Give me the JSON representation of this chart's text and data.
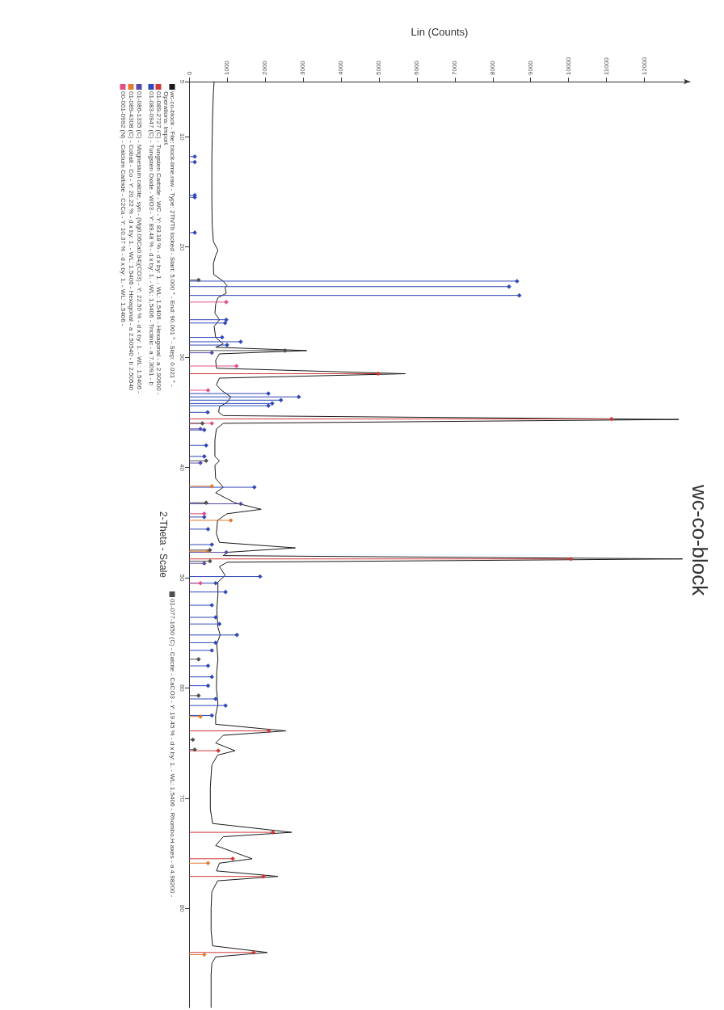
{
  "chart_data": {
    "type": "line",
    "orientation": "horizontal",
    "title": "wc-co-block",
    "xlabel": "Lin (Counts)",
    "ylabel": "2-Theta - Scale",
    "xlim": [
      0,
      13200
    ],
    "xticks": [
      0,
      1000,
      2000,
      3000,
      4000,
      5000,
      6000,
      7000,
      8000,
      9000,
      10000,
      11000,
      12000
    ],
    "ylim": [
      89,
      5
    ],
    "yticks": [
      5,
      10,
      20,
      30,
      40,
      50,
      60,
      70,
      80
    ],
    "grid": false,
    "legend": "left",
    "annotations": [
      "Operations: Import"
    ],
    "series": [
      {
        "type": "line",
        "marker": "none",
        "name": "wc-co-block - File: block-time.raw - Type: 2Th/Th locked - Start: 5.000 ° - End: 90.001 ° - Step: 0.021 ° -",
        "color": "#1a1a1a",
        "x": [
          5,
          6,
          8,
          10,
          12,
          14,
          16,
          18,
          19.5,
          20.3,
          20.8,
          21.5,
          22.5,
          23.1,
          23.5,
          23.7,
          24.2,
          24.6,
          25.2,
          26,
          26.6,
          27.2,
          28.2,
          28.8,
          29.1,
          29.4,
          29.7,
          30.3,
          31,
          31.5,
          31.9,
          32.5,
          33,
          33.6,
          34.1,
          34.5,
          35,
          35.3,
          35.65,
          36,
          36.5,
          37.5,
          39,
          39.4,
          39.8,
          41,
          41.8,
          42.3,
          43.2,
          43.8,
          44.2,
          44.8,
          46,
          46.8,
          47.3,
          47.7,
          48,
          48.3,
          48.6,
          49,
          49.8,
          50.4,
          51.5,
          53,
          54.5,
          55.2,
          56,
          57.4,
          58.5,
          60,
          61.5,
          62.5,
          63.3,
          63.9,
          64.3,
          65,
          65.7,
          66.1,
          67,
          69,
          71,
          72.3,
          73.1,
          73.5,
          74.3,
          75.5,
          75.9,
          76.6,
          77.1,
          77.5,
          78.5,
          80,
          82,
          83.4,
          84,
          84.4,
          85,
          86,
          87,
          88,
          89
        ],
        "values": [
          660,
          640,
          620,
          610,
          600,
          600,
          600,
          610,
          640,
          760,
          700,
          640,
          650,
          900,
          1000,
          950,
          980,
          760,
          700,
          680,
          800,
          660,
          700,
          900,
          700,
          3100,
          800,
          700,
          720,
          5700,
          800,
          720,
          850,
          1100,
          1000,
          800,
          780,
          900,
          12900,
          900,
          720,
          680,
          680,
          800,
          680,
          700,
          900,
          700,
          1200,
          1900,
          1000,
          750,
          720,
          800,
          2800,
          1000,
          900,
          13000,
          1000,
          800,
          950,
          760,
          760,
          730,
          760,
          820,
          730,
          760,
          730,
          720,
          760,
          700,
          700,
          2550,
          900,
          700,
          1210,
          750,
          600,
          560,
          560,
          620,
          2700,
          900,
          700,
          1660,
          800,
          720,
          2340,
          750,
          600,
          580,
          580,
          620,
          2060,
          700,
          600,
          580,
          580,
          580,
          580
        ]
      },
      {
        "type": "lollipop",
        "marker": "diamond",
        "name": "01-089-2727 (C) - Tungsten Carbide - WC - Y: 83.18 % - d x by: 1. - WL: 1.5406 - Hexagonal - a 2.90600 -",
        "color": "#d03838",
        "x": [
          31.5,
          35.6,
          48.3,
          63.9,
          65.7,
          73.1,
          75.5,
          77.1,
          84.0
        ],
        "values": [
          4980,
          11130,
          10060,
          2100,
          770,
          2210,
          1150,
          1960,
          1700
        ]
      },
      {
        "type": "lollipop",
        "marker": "diamond",
        "name": "01-083-0947 (C) - Tungsten Oxide - WO3 - Y: 89.48 % - d x by: 1. - WL: 1.5406 - Triclinic - a 7.3091 - b",
        "color": "#3048b8",
        "x": [
          11.8,
          12.3,
          15.3,
          15.5,
          18.7,
          23.1,
          23.6,
          24.4,
          26.6,
          26.9,
          28.2,
          28.6,
          28.9,
          33.3,
          33.6,
          33.9,
          34.2,
          34.4,
          35.0,
          36.6,
          38.0,
          39.0,
          41.8,
          44.5,
          45.6,
          47.0,
          49.9,
          50.5,
          51.3,
          52.5,
          53.6,
          54.2,
          55.2,
          55.9,
          56.6,
          58.0,
          59.0,
          59.8,
          61.0,
          61.6,
          62.5
        ],
        "values": [
          150,
          150,
          150,
          150,
          150,
          8640,
          8430,
          8700,
          980,
          950,
          870,
          1360,
          1000,
          2090,
          2890,
          2420,
          2190,
          2090,
          490,
          400,
          450,
          400,
          1720,
          400,
          500,
          600,
          1870,
          700,
          960,
          600,
          700,
          800,
          1260,
          700,
          600,
          500,
          600,
          500,
          700,
          960,
          600
        ]
      },
      {
        "type": "lollipop",
        "marker": "diamond",
        "name": "01-086-1335 (C) - Magnesium calcite, syn - (Mg0.06Ca0.94)(CO3) - Y: 22.50 % - d x by: 1. - WL: 1.5406 -",
        "color": "#5a4aa8",
        "x": [
          29.6,
          36.5,
          39.6,
          43.3,
          47.7,
          48.7
        ],
        "values": [
          600,
          300,
          300,
          1360,
          980,
          400
        ]
      },
      {
        "type": "lollipop",
        "marker": "diamond",
        "name": "01-089-4308 (C) - Cobalt - Co - Y: 20.22 % - d x by: 1. - WL: 1.5406 - Hexagonal - a 2.50540 - b 2.50540",
        "color": "#e07a30",
        "x": [
          41.7,
          44.8,
          47.6,
          62.6,
          75.9,
          84.2
        ],
        "values": [
          600,
          1100,
          500,
          300,
          500,
          400
        ]
      },
      {
        "type": "lollipop",
        "marker": "diamond",
        "name": "00-001-0992 (N) - Calcium Carbide - C2Ca - Y: 10.37 % - d x by: 1. - WL: 1.5406 -",
        "color": "#e0508a",
        "x": [
          25.0,
          30.8,
          33.0,
          36.0,
          44.2,
          50.5
        ],
        "values": [
          980,
          1250,
          500,
          600,
          400,
          300
        ]
      },
      {
        "type": "lollipop",
        "marker": "diamond",
        "name": "01-077-1650 (C) - Calcite - CaCO3 - Y: 19.45 % - d x by: 1. - WL: 1.5406 - Rhombo.H.axes - a 4.98200 -",
        "color": "#505050",
        "x": [
          23.0,
          29.4,
          36.0,
          39.4,
          43.2,
          47.5,
          48.5,
          57.4,
          60.7,
          64.7,
          65.6
        ],
        "values": [
          250,
          2530,
          350,
          450,
          450,
          550,
          550,
          250,
          250,
          100,
          150
        ]
      }
    ]
  }
}
